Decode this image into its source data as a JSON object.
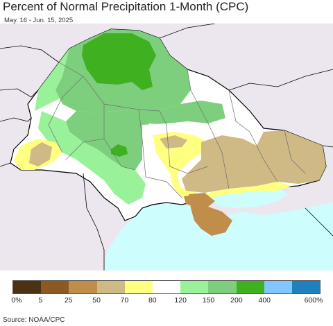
{
  "title": "Percent of Normal Precipitation 1-Month (CPC)",
  "date_range": "May. 16 - Jun. 15, 2025",
  "source": "Source: NOAA/CPC",
  "legend": {
    "colors": [
      "#4a3212",
      "#8a5a22",
      "#c08d4a",
      "#cfb985",
      "#ffff80",
      "#ffffff",
      "#99f299",
      "#7dcf7d",
      "#3fb020",
      "#80c6ff",
      "#1f7fbf"
    ],
    "ticks": [
      "0%",
      "5",
      "25",
      "50",
      "70",
      "80",
      "120",
      "150",
      "200",
      "400",
      "600%"
    ]
  },
  "map_colors": {
    "land_outside": "#ece6ee",
    "sea": "#cdfdfd",
    "border": "#000000",
    "oblast_border": "#6e6e6e"
  }
}
